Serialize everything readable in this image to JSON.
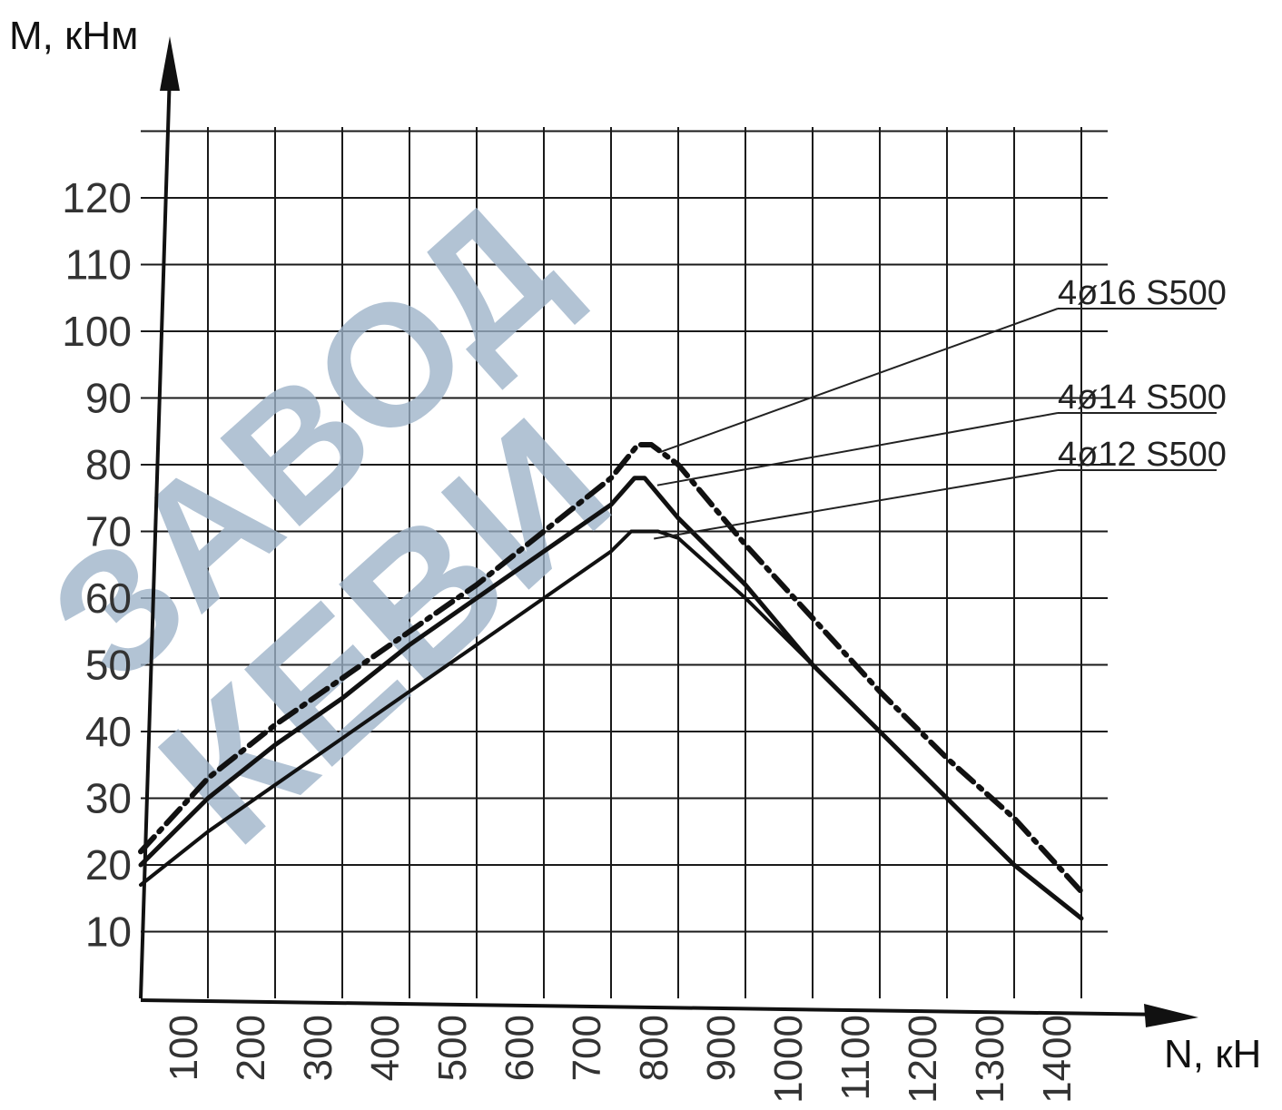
{
  "chart_data": {
    "type": "line",
    "title": "",
    "xlabel": "N, кН",
    "ylabel": "M, кНм",
    "xlim": [
      0,
      1400
    ],
    "ylim": [
      0,
      130
    ],
    "x_ticks": [
      "100",
      "200",
      "300",
      "400",
      "500",
      "600",
      "700",
      "800",
      "900",
      "1000",
      "1100",
      "1200",
      "1300",
      "1400"
    ],
    "y_ticks": [
      "10",
      "20",
      "30",
      "40",
      "50",
      "60",
      "70",
      "80",
      "90",
      "100",
      "110",
      "120"
    ],
    "grid": true,
    "series": [
      {
        "name": "4ø16 S500",
        "style": "dash-dot",
        "x": [
          0,
          100,
          200,
          300,
          400,
          500,
          600,
          700,
          740,
          760,
          800,
          900,
          1000,
          1100,
          1200,
          1300,
          1400
        ],
        "y": [
          22,
          33,
          41,
          48,
          55,
          62,
          70,
          78,
          83,
          83,
          80,
          68,
          57,
          46,
          36,
          27,
          16
        ]
      },
      {
        "name": "4ø14 S500",
        "style": "solid",
        "x": [
          0,
          100,
          200,
          300,
          400,
          500,
          600,
          700,
          735,
          750,
          800,
          900,
          1000,
          1100,
          1200,
          1300,
          1400
        ],
        "y": [
          20,
          30,
          38,
          45,
          53,
          60,
          67,
          74,
          78,
          78,
          72,
          62,
          50,
          40,
          30,
          20,
          12
        ]
      },
      {
        "name": "4ø12 S500",
        "style": "solid",
        "x": [
          0,
          100,
          200,
          300,
          400,
          500,
          600,
          700,
          730,
          770,
          800,
          900,
          1000,
          1100,
          1200,
          1300,
          1400
        ],
        "y": [
          17,
          25,
          32,
          39,
          46,
          53,
          60,
          67,
          70,
          70,
          69,
          60,
          50,
          40,
          30,
          20,
          12
        ]
      }
    ]
  },
  "watermark": {
    "line1": "ЗАВОД",
    "line2": "КЕВИ",
    "color": "#9db3c9"
  }
}
